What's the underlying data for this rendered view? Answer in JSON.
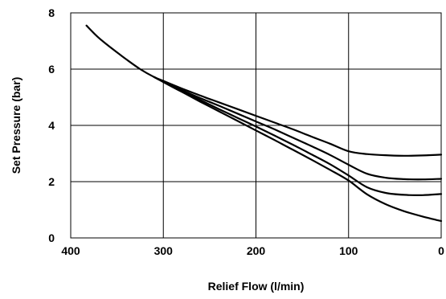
{
  "chart_data": {
    "type": "line",
    "title": "",
    "xlabel": "Relief Flow (l/min)",
    "ylabel": "Set Pressure (bar)",
    "xlim": [
      400,
      0
    ],
    "ylim": [
      0,
      8
    ],
    "x_reversed": true,
    "x_ticks": [
      400,
      300,
      200,
      100,
      0
    ],
    "y_ticks": [
      0,
      2,
      4,
      6,
      8
    ],
    "x_tick_labels": [
      "400",
      "300",
      "200",
      "100",
      "0"
    ],
    "y_tick_labels": [
      "0",
      "2",
      "4",
      "6",
      "8"
    ],
    "grid": true,
    "legend": "none",
    "line_color": "#000000",
    "series": [
      {
        "x": [
          383,
          370,
          355,
          340,
          325,
          310,
          300,
          280,
          260,
          240,
          220,
          200,
          180,
          160,
          140,
          120,
          100,
          80,
          60,
          40,
          20,
          0
        ],
        "y": [
          7.55,
          7.12,
          6.72,
          6.35,
          6.0,
          5.72,
          5.58,
          5.31,
          5.06,
          4.82,
          4.58,
          4.34,
          4.1,
          3.86,
          3.6,
          3.35,
          3.08,
          2.98,
          2.94,
          2.92,
          2.93,
          2.96
        ]
      },
      {
        "x": [
          310,
          300,
          280,
          260,
          240,
          220,
          200,
          180,
          160,
          140,
          120,
          100,
          80,
          60,
          40,
          20,
          0
        ],
        "y": [
          5.72,
          5.56,
          5.25,
          4.97,
          4.7,
          4.42,
          4.14,
          3.86,
          3.56,
          3.26,
          2.95,
          2.6,
          2.28,
          2.14,
          2.09,
          2.08,
          2.1
        ]
      },
      {
        "x": [
          310,
          300,
          280,
          260,
          240,
          220,
          200,
          180,
          160,
          140,
          120,
          100,
          80,
          60,
          40,
          20,
          0
        ],
        "y": [
          5.72,
          5.55,
          5.22,
          4.9,
          4.58,
          4.27,
          3.96,
          3.64,
          3.31,
          2.97,
          2.62,
          2.22,
          1.8,
          1.6,
          1.53,
          1.52,
          1.56
        ]
      },
      {
        "x": [
          310,
          300,
          280,
          260,
          240,
          220,
          200,
          180,
          160,
          140,
          120,
          100,
          80,
          60,
          40,
          20,
          0
        ],
        "y": [
          5.72,
          5.54,
          5.19,
          4.84,
          4.5,
          4.16,
          3.82,
          3.48,
          3.13,
          2.78,
          2.42,
          2.04,
          1.55,
          1.2,
          0.95,
          0.76,
          0.6
        ]
      }
    ]
  }
}
